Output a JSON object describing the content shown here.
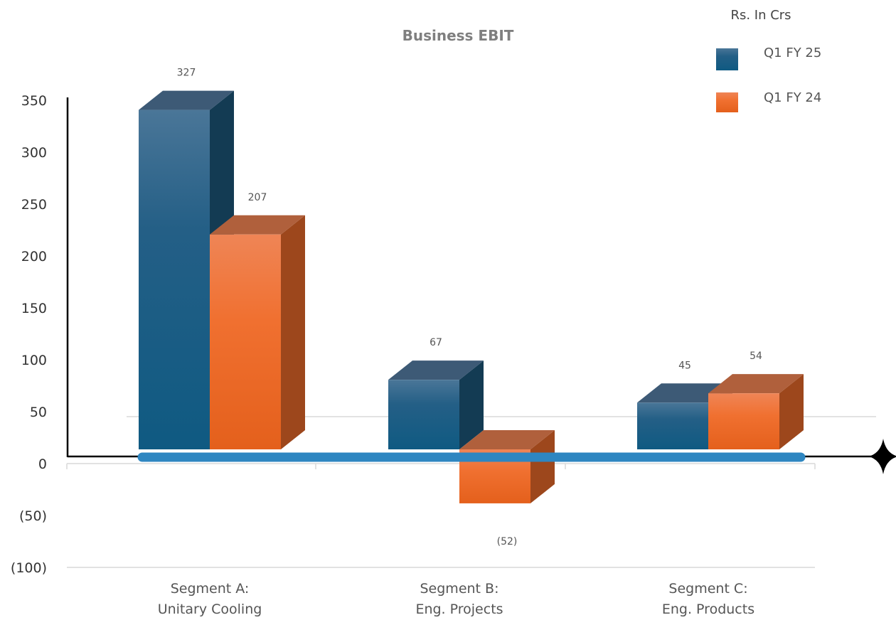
{
  "chart_data": {
    "type": "bar",
    "title": "Business EBIT",
    "unit_note": "Rs. In Crs",
    "categories": [
      [
        "Segment A:",
        "Unitary Cooling"
      ],
      [
        "Segment B:",
        "Eng. Projects"
      ],
      [
        "Segment C:",
        "Eng. Products"
      ]
    ],
    "series": [
      {
        "name": "Q1 FY 25",
        "values": [
          327,
          67,
          45
        ],
        "labels": [
          "327",
          "67",
          "45"
        ],
        "color": "#1f5f86"
      },
      {
        "name": "Q1 FY 24",
        "values": [
          207,
          -52,
          54
        ],
        "labels": [
          "207",
          "(52)",
          "54"
        ],
        "color": "#ee6b2b"
      }
    ],
    "yticks": [
      {
        "value": 350,
        "label": "350"
      },
      {
        "value": 300,
        "label": "300"
      },
      {
        "value": 250,
        "label": "250"
      },
      {
        "value": 200,
        "label": "200"
      },
      {
        "value": 150,
        "label": "150"
      },
      {
        "value": 100,
        "label": "100"
      },
      {
        "value": 50,
        "label": "50"
      },
      {
        "value": 0,
        "label": "0"
      },
      {
        "value": -50,
        "label": "(50)"
      },
      {
        "value": -100,
        "label": "(100)"
      }
    ],
    "ylim": [
      -100,
      350
    ],
    "legend_position": "top-right",
    "style": "3d-column",
    "colors": {
      "axis": "#000000",
      "highlight_line": "#2e86c1",
      "grid": "#d9d9d9"
    }
  }
}
